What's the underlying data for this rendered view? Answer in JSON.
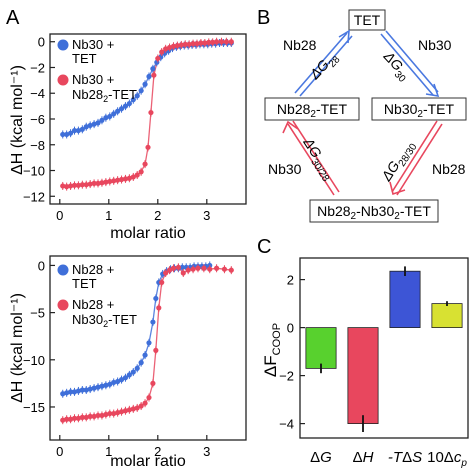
{
  "panels": {
    "A": "A",
    "B": "B",
    "C": "C"
  },
  "colors": {
    "blue": "#3f6fd9",
    "red": "#e8475e",
    "green": "#58d12e",
    "purple": "#3d55d6",
    "yellow": "#d8e132"
  },
  "chart_data": [
    {
      "type": "scatter",
      "panel": "A-top",
      "xlabel": "molar ratio",
      "ylabel": "ΔH (kcal mol⁻¹)",
      "xlim": [
        -0.2,
        3.8
      ],
      "ylim": [
        -12.6,
        0.6
      ],
      "xticks": [
        0,
        1,
        2,
        3
      ],
      "yticks": [
        0,
        -2,
        -4,
        -6,
        -8,
        -10,
        -12
      ],
      "legend": [
        "Nb30 + TET",
        "Nb30 + Nb28₂-TET"
      ],
      "series": [
        {
          "name": "Nb30 + TET",
          "color": "#3f6fd9",
          "points": [
            [
              0.06,
              -7.2
            ],
            [
              0.14,
              -7.2
            ],
            [
              0.22,
              -7.1
            ],
            [
              0.3,
              -6.9
            ],
            [
              0.38,
              -6.9
            ],
            [
              0.46,
              -6.8
            ],
            [
              0.54,
              -6.6
            ],
            [
              0.62,
              -6.5
            ],
            [
              0.7,
              -6.4
            ],
            [
              0.78,
              -6.3
            ],
            [
              0.86,
              -6.1
            ],
            [
              0.94,
              -5.9
            ],
            [
              1.02,
              -5.8
            ],
            [
              1.1,
              -5.6
            ],
            [
              1.18,
              -5.4
            ],
            [
              1.26,
              -5.2
            ],
            [
              1.34,
              -5.0
            ],
            [
              1.42,
              -4.8
            ],
            [
              1.5,
              -4.5
            ],
            [
              1.58,
              -4.2
            ],
            [
              1.66,
              -3.8
            ],
            [
              1.74,
              -3.3
            ],
            [
              1.82,
              -2.7
            ],
            [
              1.9,
              -2.1
            ],
            [
              1.98,
              -1.6
            ],
            [
              2.06,
              -1.2
            ],
            [
              2.14,
              -0.9
            ],
            [
              2.22,
              -0.7
            ],
            [
              2.3,
              -0.5
            ],
            [
              2.38,
              -0.4
            ],
            [
              2.46,
              -0.35
            ],
            [
              2.54,
              -0.3
            ],
            [
              2.62,
              -0.3
            ],
            [
              2.7,
              -0.25
            ],
            [
              2.78,
              -0.25
            ],
            [
              2.86,
              -0.2
            ],
            [
              2.94,
              -0.2
            ],
            [
              3.02,
              -0.2
            ],
            [
              3.1,
              -0.15
            ],
            [
              3.18,
              -0.15
            ],
            [
              3.26,
              -0.1
            ],
            [
              3.34,
              -0.1
            ],
            [
              3.42,
              -0.1
            ],
            [
              3.5,
              -0.1
            ]
          ]
        },
        {
          "name": "Nb30 + Nb28₂-TET",
          "color": "#e8475e",
          "points": [
            [
              0.06,
              -11.2
            ],
            [
              0.14,
              -11.25
            ],
            [
              0.22,
              -11.2
            ],
            [
              0.3,
              -11.15
            ],
            [
              0.38,
              -11.15
            ],
            [
              0.46,
              -11.1
            ],
            [
              0.54,
              -11.1
            ],
            [
              0.62,
              -11.05
            ],
            [
              0.7,
              -11.0
            ],
            [
              0.78,
              -11.0
            ],
            [
              0.86,
              -10.95
            ],
            [
              0.94,
              -10.9
            ],
            [
              1.02,
              -10.85
            ],
            [
              1.1,
              -10.8
            ],
            [
              1.18,
              -10.75
            ],
            [
              1.26,
              -10.7
            ],
            [
              1.34,
              -10.65
            ],
            [
              1.42,
              -10.6
            ],
            [
              1.5,
              -10.5
            ],
            [
              1.58,
              -10.35
            ],
            [
              1.66,
              -10.1
            ],
            [
              1.74,
              -9.5
            ],
            [
              1.8,
              -8.2
            ],
            [
              1.86,
              -5.5
            ],
            [
              1.92,
              -2.6
            ],
            [
              2.0,
              -1.3
            ],
            [
              2.08,
              -0.8
            ],
            [
              2.16,
              -0.55
            ],
            [
              2.24,
              -0.45
            ],
            [
              2.32,
              -0.35
            ],
            [
              2.4,
              -0.3
            ],
            [
              2.48,
              -0.25
            ],
            [
              2.56,
              -0.2
            ],
            [
              2.64,
              -0.2
            ],
            [
              2.72,
              -0.15
            ],
            [
              2.8,
              -0.15
            ],
            [
              2.88,
              -0.1
            ],
            [
              2.96,
              -0.1
            ],
            [
              3.04,
              -0.05
            ],
            [
              3.12,
              -0.05
            ],
            [
              3.2,
              0.0
            ],
            [
              3.3,
              0.0
            ],
            [
              3.4,
              0.0
            ],
            [
              3.5,
              0.0
            ]
          ]
        }
      ]
    },
    {
      "type": "scatter",
      "panel": "A-bottom",
      "xlabel": "molar ratio",
      "ylabel": "ΔH (kcal mol⁻¹)",
      "xlim": [
        -0.2,
        3.8
      ],
      "ylim": [
        -18.5,
        1.0
      ],
      "xticks": [
        0,
        1,
        2,
        3
      ],
      "yticks": [
        0,
        -5,
        -10,
        -15
      ],
      "legend": [
        "Nb28 + TET",
        "Nb28 + Nb30₂-TET"
      ],
      "series": [
        {
          "name": "Nb28 + TET",
          "color": "#3f6fd9",
          "points": [
            [
              0.06,
              -13.6
            ],
            [
              0.14,
              -13.5
            ],
            [
              0.22,
              -13.4
            ],
            [
              0.3,
              -13.4
            ],
            [
              0.38,
              -13.3
            ],
            [
              0.46,
              -13.2
            ],
            [
              0.54,
              -13.2
            ],
            [
              0.62,
              -13.1
            ],
            [
              0.7,
              -13.0
            ],
            [
              0.78,
              -12.9
            ],
            [
              0.86,
              -12.8
            ],
            [
              0.94,
              -12.7
            ],
            [
              1.02,
              -12.6
            ],
            [
              1.1,
              -12.4
            ],
            [
              1.18,
              -12.3
            ],
            [
              1.26,
              -12.1
            ],
            [
              1.34,
              -11.9
            ],
            [
              1.42,
              -11.6
            ],
            [
              1.5,
              -11.3
            ],
            [
              1.58,
              -10.9
            ],
            [
              1.66,
              -10.3
            ],
            [
              1.74,
              -9.5
            ],
            [
              1.82,
              -8.2
            ],
            [
              1.9,
              -6.0
            ],
            [
              1.96,
              -3.5
            ],
            [
              2.02,
              -1.8
            ],
            [
              2.1,
              -0.9
            ],
            [
              2.18,
              -0.6
            ],
            [
              2.26,
              -0.4
            ],
            [
              2.34,
              -0.3
            ],
            [
              2.42,
              -0.3
            ],
            [
              2.5,
              -0.2
            ],
            [
              2.58,
              -0.2
            ],
            [
              2.66,
              -0.2
            ],
            [
              2.74,
              -0.1
            ],
            [
              2.82,
              -0.1
            ],
            [
              2.9,
              -0.1
            ],
            [
              2.98,
              -0.1
            ],
            [
              3.06,
              0.0
            ]
          ]
        },
        {
          "name": "Nb28 + Nb30₂-TET",
          "color": "#e8475e",
          "points": [
            [
              0.06,
              -16.4
            ],
            [
              0.14,
              -16.3
            ],
            [
              0.22,
              -16.3
            ],
            [
              0.3,
              -16.2
            ],
            [
              0.38,
              -16.2
            ],
            [
              0.46,
              -16.1
            ],
            [
              0.54,
              -16.1
            ],
            [
              0.62,
              -16.0
            ],
            [
              0.7,
              -16.0
            ],
            [
              0.78,
              -15.9
            ],
            [
              0.86,
              -15.9
            ],
            [
              0.94,
              -15.8
            ],
            [
              1.02,
              -15.7
            ],
            [
              1.1,
              -15.7
            ],
            [
              1.18,
              -15.6
            ],
            [
              1.26,
              -15.5
            ],
            [
              1.34,
              -15.4
            ],
            [
              1.42,
              -15.3
            ],
            [
              1.5,
              -15.2
            ],
            [
              1.58,
              -15.1
            ],
            [
              1.66,
              -14.9
            ],
            [
              1.74,
              -14.6
            ],
            [
              1.82,
              -14.0
            ],
            [
              1.9,
              -12.5
            ],
            [
              1.96,
              -9.0
            ],
            [
              2.02,
              -4.5
            ],
            [
              2.08,
              -1.8
            ],
            [
              2.16,
              -0.8
            ],
            [
              2.24,
              -0.5
            ],
            [
              2.32,
              -0.3
            ],
            [
              2.42,
              -0.2
            ],
            [
              2.52,
              -0.8
            ],
            [
              2.62,
              -0.5
            ],
            [
              2.72,
              -0.4
            ],
            [
              2.82,
              -0.3
            ],
            [
              2.94,
              -0.3
            ],
            [
              3.06,
              -0.4
            ],
            [
              3.2,
              -0.3
            ],
            [
              3.36,
              -0.4
            ],
            [
              3.5,
              -0.5
            ]
          ]
        }
      ]
    },
    {
      "type": "bar",
      "panel": "C",
      "ylabel": "ΔF_COOP",
      "categories": [
        "ΔG",
        "ΔH",
        "-TΔS",
        "10Δc_p"
      ],
      "values": [
        -1.7,
        -4.0,
        2.35,
        1.0
      ],
      "errors": [
        0.2,
        0.35,
        0.2,
        0.1
      ],
      "colors": [
        "#58d12e",
        "#e8475e",
        "#3d55d6",
        "#d8e132"
      ],
      "ylim": [
        -4.6,
        2.9
      ],
      "yticks": [
        2,
        0,
        -2,
        -4
      ]
    }
  ],
  "diagram": {
    "nodes": {
      "top": "TET",
      "left": "Nb28₂-TET",
      "right": "Nb30₂-TET",
      "bottom": "Nb28₂-Nb30₂-TET"
    },
    "edge_labels": {
      "top_left_nb": "Nb28",
      "top_right_nb": "Nb30",
      "g28": "ΔG₂₈",
      "g30": "ΔG₃₀",
      "bottom_left_nb": "Nb30",
      "bottom_right_nb": "Nb28",
      "g30_28": "ΔG₃₀/₂₈",
      "g28_30": "ΔG₂₈/₃₀"
    }
  }
}
